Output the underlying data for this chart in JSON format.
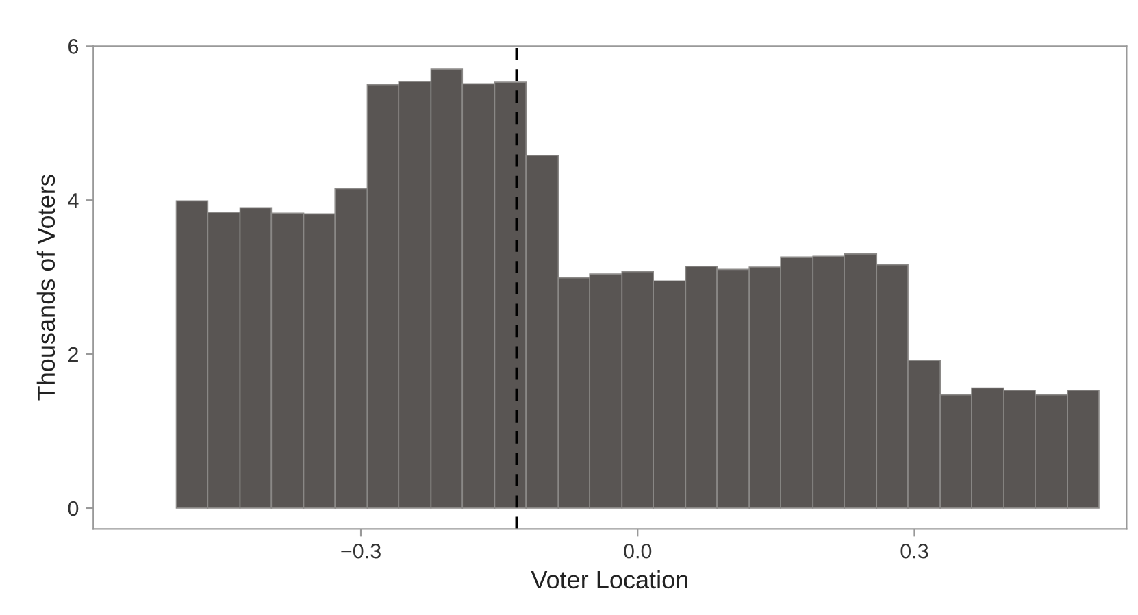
{
  "chart_data": {
    "type": "histogram",
    "xlabel": "Voter Location",
    "ylabel": "Thousands of Voters",
    "bins": [
      -0.5,
      -0.466,
      -0.431,
      -0.397,
      -0.362,
      -0.328,
      -0.293,
      -0.259,
      -0.224,
      -0.19,
      -0.155,
      -0.121,
      -0.086,
      -0.052,
      -0.017,
      0.017,
      0.052,
      0.086,
      0.121,
      0.155,
      0.19,
      0.224,
      0.259,
      0.293,
      0.328,
      0.362,
      0.397,
      0.431,
      0.466,
      0.5
    ],
    "values": [
      3.99,
      3.84,
      3.9,
      3.83,
      3.82,
      4.15,
      5.5,
      5.54,
      5.7,
      5.51,
      5.53,
      4.58,
      2.99,
      3.04,
      3.07,
      2.95,
      3.14,
      3.1,
      3.13,
      3.26,
      3.27,
      3.3,
      3.16,
      1.92,
      1.47,
      1.56,
      1.53,
      1.47,
      1.53
    ],
    "color": "#595553",
    "xlim": [
      -0.59,
      0.53
    ],
    "ylim": [
      -0.27,
      6
    ],
    "xticks": [
      {
        "value": -0.3,
        "label": "−0.3"
      },
      {
        "value": 0,
        "label": "0.0"
      },
      {
        "value": 0.3,
        "label": "0.3"
      }
    ],
    "yticks": [
      0,
      2,
      4,
      6
    ],
    "ref_lines": [
      {
        "axis": "x",
        "value": -0.131,
        "color": "#000000",
        "line_style": "dashed"
      }
    ],
    "grid": false
  }
}
